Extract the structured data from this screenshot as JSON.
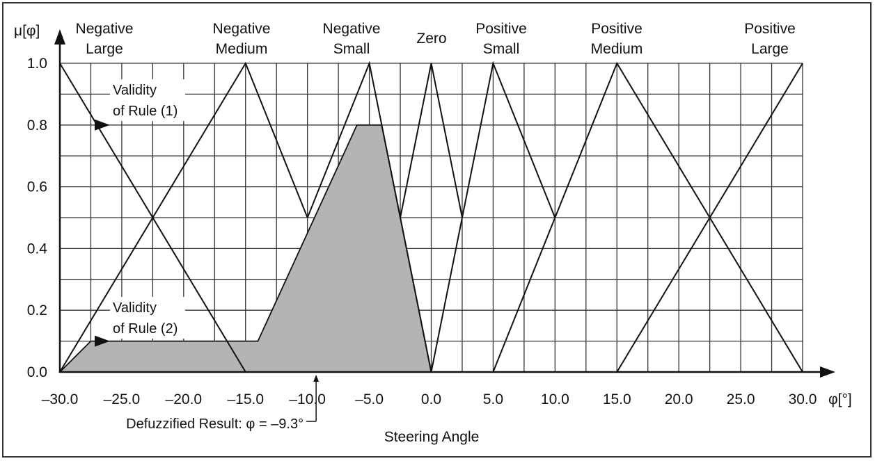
{
  "chart_data": {
    "type": "line",
    "title": "",
    "ylabel": "μ[φ]",
    "xlabel": "φ[°]",
    "xcaption": "Steering Angle",
    "xlim": [
      -30,
      30
    ],
    "ylim": [
      0,
      1
    ],
    "x_ticks": [
      "–30.0",
      "–25.0",
      "–20.0",
      "–15.0",
      "–10.0",
      "–5.0",
      "0.0",
      "5.0",
      "10.0",
      "15.0",
      "20.0",
      "25.0",
      "30.0"
    ],
    "x_tick_values": [
      -30,
      -25,
      -20,
      -15,
      -10,
      -5,
      0,
      5,
      10,
      15,
      20,
      25,
      30
    ],
    "y_ticks": [
      "0.0",
      "0.2",
      "0.4",
      "0.6",
      "0.8",
      "1.0"
    ],
    "y_tick_values": [
      0,
      0.2,
      0.4,
      0.6,
      0.8,
      1.0
    ],
    "grid": true,
    "grid_x_step": 2.5,
    "grid_y_step": 0.1,
    "series": [
      {
        "name": "Negative Large",
        "label_lines": [
          "Negative",
          "Large"
        ],
        "x": [
          -30,
          -15
        ],
        "y": [
          1,
          0
        ]
      },
      {
        "name": "Negative Medium",
        "label_lines": [
          "Negative",
          "Medium"
        ],
        "x": [
          -30,
          -15,
          -10
        ],
        "y": [
          0,
          1,
          0.5
        ]
      },
      {
        "name": "Negative Small",
        "label_lines": [
          "Negative",
          "Small"
        ],
        "x": [
          -10,
          -5,
          0
        ],
        "y": [
          0.5,
          1,
          0
        ]
      },
      {
        "name": "Zero",
        "label_lines": [
          "Zero"
        ],
        "x": [
          -2.5,
          0,
          2.5
        ],
        "y": [
          0.5,
          1,
          0.5
        ]
      },
      {
        "name": "Positive Small",
        "label_lines": [
          "Positive",
          "Small"
        ],
        "x": [
          0,
          5,
          10
        ],
        "y": [
          0,
          1,
          0.5
        ]
      },
      {
        "name": "Positive Medium",
        "label_lines": [
          "Positive",
          "Medium"
        ],
        "x": [
          5,
          15,
          30
        ],
        "y": [
          0,
          1,
          0
        ]
      },
      {
        "name": "Positive Large",
        "label_lines": [
          "Positive",
          "Large"
        ],
        "x": [
          15,
          30
        ],
        "y": [
          0,
          1
        ]
      }
    ],
    "shaded_region": {
      "x": [
        -30,
        -27.5,
        -14,
        -6,
        -4,
        0,
        -30
      ],
      "y": [
        0,
        0.1,
        0.1,
        0.8,
        0.8,
        0,
        0
      ],
      "color": "#b4b4b4"
    },
    "annotations": [
      {
        "lines": [
          "Validity",
          "of Rule (1)"
        ],
        "level": 0.8
      },
      {
        "lines": [
          "Validity",
          "of Rule (2)"
        ],
        "level": 0.1
      }
    ],
    "defuzzified": {
      "text": "Defuzzified Result: φ = –9.3°",
      "x": -9.3
    }
  }
}
